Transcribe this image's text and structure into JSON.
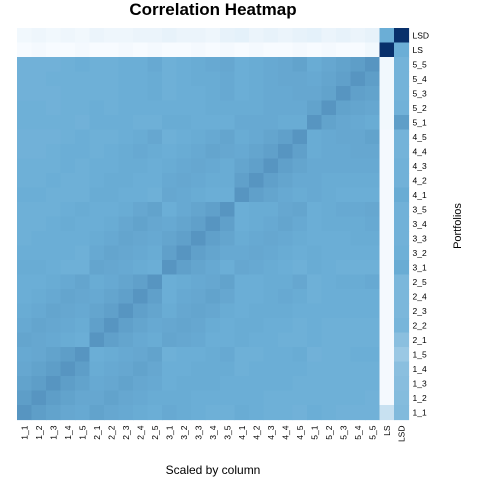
{
  "chart_data": {
    "type": "heatmap",
    "title": "Correlation Heatmap",
    "xlabel": "Scaled by column",
    "ylabel": "Portfolios",
    "columns": [
      "1_1",
      "1_2",
      "1_3",
      "1_4",
      "1_5",
      "2_1",
      "2_2",
      "2_3",
      "2_4",
      "2_5",
      "3_1",
      "3_2",
      "3_3",
      "3_4",
      "3_5",
      "4_1",
      "4_2",
      "4_3",
      "4_4",
      "4_5",
      "5_1",
      "5_2",
      "5_3",
      "5_4",
      "5_5",
      "LS",
      "LSD"
    ],
    "rows_top_to_bottom": [
      "LSD",
      "LS",
      "5_5",
      "5_4",
      "5_3",
      "5_2",
      "5_1",
      "4_5",
      "4_4",
      "4_3",
      "4_2",
      "4_1",
      "3_5",
      "3_4",
      "3_3",
      "3_2",
      "3_1",
      "2_5",
      "2_4",
      "2_3",
      "2_2",
      "2_1",
      "1_5",
      "1_4",
      "1_3",
      "1_2",
      "1_1"
    ],
    "color_scale": {
      "low": "#f7fbff",
      "mid": "#6baed6",
      "high": "#08306b"
    },
    "values_scaled": [
      [
        0.02,
        0.03,
        0.02,
        0.03,
        0.02,
        0.04,
        0.03,
        0.03,
        0.04,
        0.04,
        0.05,
        0.04,
        0.04,
        0.03,
        0.05,
        0.06,
        0.04,
        0.05,
        0.04,
        0.05,
        0.06,
        0.04,
        0.05,
        0.04,
        0.05,
        0.45,
        1.0
      ],
      [
        0.0,
        0.01,
        0.0,
        0.0,
        0.01,
        0.0,
        0.0,
        0.01,
        0.0,
        0.01,
        0.0,
        0.0,
        0.01,
        0.0,
        0.01,
        0.0,
        0.01,
        0.0,
        0.0,
        0.01,
        0.0,
        0.01,
        0.0,
        0.0,
        0.02,
        1.0,
        0.45
      ],
      [
        0.43,
        0.43,
        0.43,
        0.44,
        0.45,
        0.44,
        0.44,
        0.45,
        0.45,
        0.47,
        0.44,
        0.45,
        0.46,
        0.47,
        0.48,
        0.45,
        0.46,
        0.47,
        0.48,
        0.5,
        0.46,
        0.48,
        0.5,
        0.52,
        0.56,
        0.02,
        0.42
      ],
      [
        0.43,
        0.43,
        0.44,
        0.44,
        0.44,
        0.44,
        0.44,
        0.45,
        0.45,
        0.46,
        0.44,
        0.45,
        0.46,
        0.46,
        0.47,
        0.45,
        0.46,
        0.47,
        0.48,
        0.48,
        0.47,
        0.49,
        0.51,
        0.56,
        0.52,
        0.02,
        0.42
      ],
      [
        0.43,
        0.43,
        0.43,
        0.44,
        0.44,
        0.44,
        0.44,
        0.45,
        0.45,
        0.46,
        0.44,
        0.45,
        0.45,
        0.46,
        0.47,
        0.45,
        0.46,
        0.47,
        0.47,
        0.48,
        0.48,
        0.5,
        0.56,
        0.51,
        0.5,
        0.02,
        0.42
      ],
      [
        0.44,
        0.44,
        0.43,
        0.44,
        0.44,
        0.45,
        0.44,
        0.45,
        0.45,
        0.45,
        0.45,
        0.45,
        0.45,
        0.46,
        0.46,
        0.46,
        0.46,
        0.47,
        0.47,
        0.47,
        0.5,
        0.56,
        0.5,
        0.49,
        0.48,
        0.02,
        0.43
      ],
      [
        0.44,
        0.44,
        0.44,
        0.44,
        0.43,
        0.45,
        0.45,
        0.45,
        0.44,
        0.44,
        0.46,
        0.46,
        0.45,
        0.45,
        0.45,
        0.47,
        0.47,
        0.47,
        0.46,
        0.46,
        0.56,
        0.5,
        0.48,
        0.47,
        0.46,
        0.02,
        0.52
      ],
      [
        0.43,
        0.43,
        0.43,
        0.44,
        0.45,
        0.44,
        0.44,
        0.45,
        0.46,
        0.48,
        0.44,
        0.45,
        0.46,
        0.47,
        0.49,
        0.46,
        0.47,
        0.49,
        0.51,
        0.56,
        0.46,
        0.47,
        0.48,
        0.48,
        0.5,
        0.01,
        0.42
      ],
      [
        0.43,
        0.43,
        0.44,
        0.45,
        0.45,
        0.44,
        0.45,
        0.46,
        0.47,
        0.46,
        0.45,
        0.46,
        0.47,
        0.49,
        0.48,
        0.47,
        0.49,
        0.51,
        0.56,
        0.51,
        0.46,
        0.47,
        0.47,
        0.48,
        0.48,
        0.01,
        0.42
      ],
      [
        0.44,
        0.44,
        0.44,
        0.45,
        0.44,
        0.45,
        0.45,
        0.46,
        0.46,
        0.45,
        0.46,
        0.47,
        0.48,
        0.47,
        0.46,
        0.49,
        0.51,
        0.56,
        0.51,
        0.49,
        0.47,
        0.47,
        0.47,
        0.47,
        0.47,
        0.01,
        0.43
      ],
      [
        0.44,
        0.44,
        0.45,
        0.44,
        0.44,
        0.45,
        0.46,
        0.46,
        0.45,
        0.45,
        0.47,
        0.48,
        0.47,
        0.46,
        0.46,
        0.51,
        0.56,
        0.51,
        0.49,
        0.47,
        0.47,
        0.46,
        0.46,
        0.46,
        0.46,
        0.01,
        0.43
      ],
      [
        0.45,
        0.45,
        0.44,
        0.44,
        0.44,
        0.46,
        0.46,
        0.45,
        0.45,
        0.44,
        0.48,
        0.47,
        0.46,
        0.45,
        0.45,
        0.56,
        0.51,
        0.49,
        0.47,
        0.46,
        0.47,
        0.46,
        0.45,
        0.45,
        0.45,
        0.01,
        0.46
      ],
      [
        0.44,
        0.44,
        0.44,
        0.45,
        0.46,
        0.45,
        0.45,
        0.46,
        0.48,
        0.5,
        0.45,
        0.47,
        0.49,
        0.51,
        0.56,
        0.45,
        0.46,
        0.46,
        0.48,
        0.49,
        0.45,
        0.46,
        0.47,
        0.47,
        0.48,
        0.01,
        0.43
      ],
      [
        0.44,
        0.44,
        0.45,
        0.46,
        0.45,
        0.45,
        0.46,
        0.48,
        0.5,
        0.48,
        0.47,
        0.49,
        0.51,
        0.56,
        0.51,
        0.45,
        0.46,
        0.47,
        0.49,
        0.47,
        0.45,
        0.46,
        0.46,
        0.46,
        0.47,
        0.01,
        0.43
      ],
      [
        0.44,
        0.45,
        0.45,
        0.45,
        0.45,
        0.46,
        0.47,
        0.49,
        0.48,
        0.47,
        0.49,
        0.51,
        0.56,
        0.51,
        0.49,
        0.46,
        0.47,
        0.48,
        0.47,
        0.46,
        0.45,
        0.45,
        0.45,
        0.46,
        0.46,
        0.01,
        0.43
      ],
      [
        0.45,
        0.45,
        0.45,
        0.45,
        0.44,
        0.47,
        0.49,
        0.48,
        0.47,
        0.46,
        0.51,
        0.56,
        0.51,
        0.49,
        0.47,
        0.47,
        0.48,
        0.47,
        0.46,
        0.45,
        0.46,
        0.45,
        0.45,
        0.45,
        0.45,
        0.01,
        0.44
      ],
      [
        0.46,
        0.46,
        0.45,
        0.44,
        0.44,
        0.49,
        0.48,
        0.47,
        0.46,
        0.45,
        0.56,
        0.51,
        0.49,
        0.47,
        0.45,
        0.48,
        0.47,
        0.46,
        0.45,
        0.44,
        0.46,
        0.45,
        0.44,
        0.44,
        0.44,
        0.01,
        0.46
      ],
      [
        0.45,
        0.45,
        0.46,
        0.47,
        0.49,
        0.46,
        0.47,
        0.49,
        0.51,
        0.56,
        0.45,
        0.46,
        0.47,
        0.48,
        0.5,
        0.45,
        0.45,
        0.46,
        0.46,
        0.48,
        0.44,
        0.45,
        0.46,
        0.46,
        0.47,
        0.01,
        0.4
      ],
      [
        0.45,
        0.46,
        0.47,
        0.49,
        0.48,
        0.47,
        0.49,
        0.51,
        0.56,
        0.51,
        0.45,
        0.47,
        0.48,
        0.5,
        0.48,
        0.45,
        0.45,
        0.46,
        0.47,
        0.46,
        0.44,
        0.45,
        0.45,
        0.45,
        0.45,
        0.01,
        0.4
      ],
      [
        0.46,
        0.47,
        0.49,
        0.48,
        0.47,
        0.49,
        0.51,
        0.56,
        0.51,
        0.49,
        0.46,
        0.48,
        0.49,
        0.48,
        0.46,
        0.45,
        0.46,
        0.46,
        0.46,
        0.45,
        0.45,
        0.45,
        0.45,
        0.45,
        0.45,
        0.01,
        0.4
      ],
      [
        0.47,
        0.49,
        0.48,
        0.47,
        0.46,
        0.51,
        0.56,
        0.51,
        0.49,
        0.47,
        0.48,
        0.49,
        0.48,
        0.46,
        0.45,
        0.46,
        0.46,
        0.45,
        0.45,
        0.44,
        0.45,
        0.44,
        0.44,
        0.44,
        0.44,
        0.01,
        0.41
      ],
      [
        0.49,
        0.48,
        0.47,
        0.46,
        0.45,
        0.56,
        0.51,
        0.49,
        0.47,
        0.46,
        0.49,
        0.48,
        0.47,
        0.45,
        0.45,
        0.46,
        0.45,
        0.45,
        0.44,
        0.44,
        0.45,
        0.44,
        0.44,
        0.44,
        0.44,
        0.01,
        0.35
      ],
      [
        0.47,
        0.48,
        0.5,
        0.52,
        0.56,
        0.45,
        0.46,
        0.47,
        0.48,
        0.5,
        0.44,
        0.45,
        0.45,
        0.46,
        0.47,
        0.44,
        0.44,
        0.45,
        0.45,
        0.46,
        0.43,
        0.44,
        0.44,
        0.45,
        0.45,
        0.01,
        0.3
      ],
      [
        0.48,
        0.5,
        0.52,
        0.56,
        0.52,
        0.46,
        0.47,
        0.48,
        0.5,
        0.48,
        0.45,
        0.45,
        0.46,
        0.46,
        0.46,
        0.44,
        0.45,
        0.45,
        0.45,
        0.45,
        0.44,
        0.44,
        0.44,
        0.44,
        0.44,
        0.01,
        0.35
      ],
      [
        0.5,
        0.52,
        0.56,
        0.52,
        0.5,
        0.47,
        0.48,
        0.5,
        0.48,
        0.47,
        0.45,
        0.46,
        0.46,
        0.46,
        0.45,
        0.45,
        0.45,
        0.45,
        0.45,
        0.44,
        0.44,
        0.44,
        0.44,
        0.44,
        0.44,
        0.01,
        0.36
      ],
      [
        0.52,
        0.56,
        0.52,
        0.5,
        0.48,
        0.48,
        0.5,
        0.48,
        0.47,
        0.46,
        0.46,
        0.46,
        0.45,
        0.45,
        0.45,
        0.45,
        0.45,
        0.44,
        0.44,
        0.44,
        0.44,
        0.44,
        0.44,
        0.44,
        0.43,
        0.01,
        0.37
      ],
      [
        0.56,
        0.52,
        0.5,
        0.48,
        0.47,
        0.5,
        0.48,
        0.47,
        0.46,
        0.45,
        0.47,
        0.46,
        0.45,
        0.44,
        0.44,
        0.46,
        0.45,
        0.44,
        0.44,
        0.43,
        0.45,
        0.44,
        0.43,
        0.43,
        0.43,
        0.15,
        0.38
      ]
    ]
  }
}
